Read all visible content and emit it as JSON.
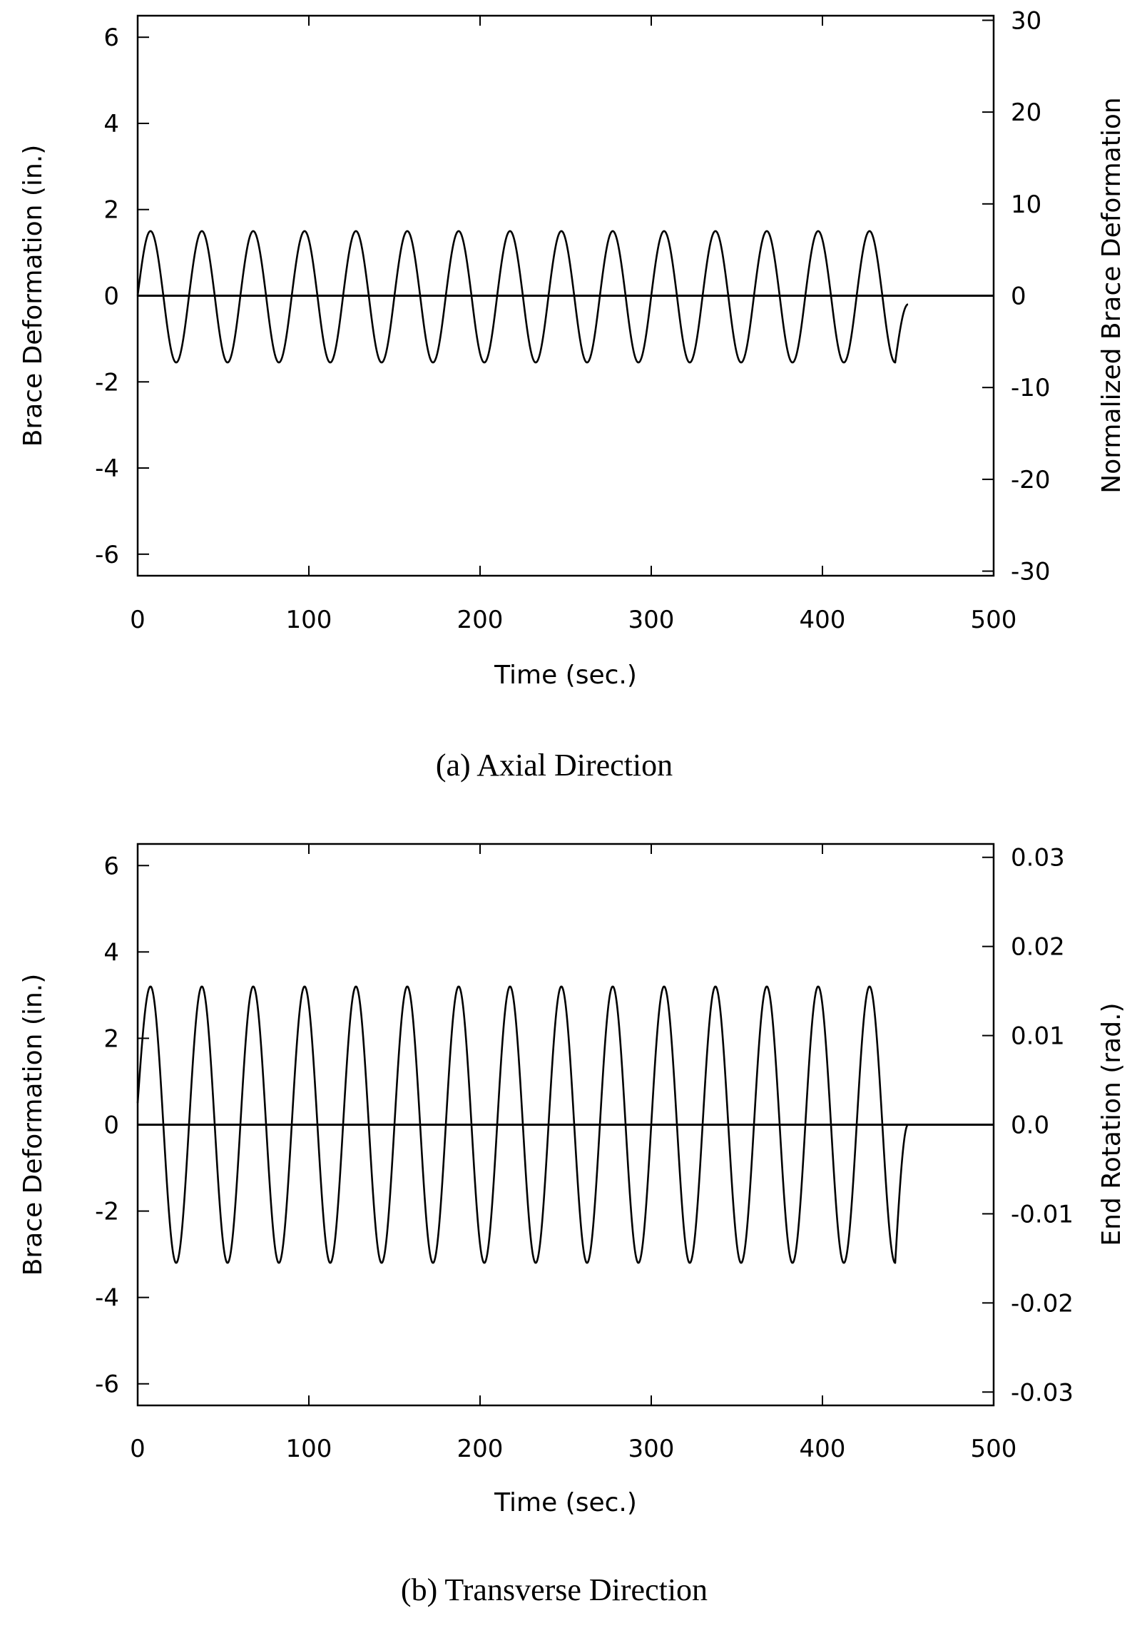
{
  "chart_data": [
    {
      "type": "line",
      "caption": "(a) Axial Direction",
      "xlabel": "Time (sec.)",
      "ylabel": "Brace Deformation (in.)",
      "y2label": "Normalized Brace Deformation",
      "xlim": [
        0,
        500
      ],
      "ylim": [
        -6.5,
        6.5
      ],
      "y2lim": [
        -30.5,
        30.5
      ],
      "xticks": [
        0,
        100,
        200,
        300,
        400,
        500
      ],
      "yticks": [
        -6,
        -4,
        -2,
        0,
        2,
        4,
        6
      ],
      "y2ticks": [
        -30,
        -20,
        -10,
        0,
        10,
        20,
        30
      ],
      "xtick_labels": [
        "0",
        "100",
        "200",
        "300",
        "400",
        "500"
      ],
      "ytick_labels": [
        "-6",
        "-4",
        "-2",
        "0",
        "2",
        "4",
        "6"
      ],
      "y2tick_labels": [
        "-30",
        "-20",
        "-10",
        "0",
        "10",
        "20",
        "30"
      ],
      "grid": false,
      "series": [
        {
          "x": [
            0,
            7.5,
            22.5,
            37.5,
            52.5,
            67.5,
            82.5,
            97.5,
            112.5,
            127.5,
            142.5,
            157.5,
            172.5,
            187.5,
            202.5,
            217.5,
            232.5,
            247.5,
            262.5,
            277.5,
            292.5,
            307.5,
            322.5,
            337.5,
            352.5,
            367.5,
            382.5,
            397.5,
            412.5,
            427.5,
            442.5,
            450
          ],
          "y": [
            0,
            1.5,
            -1.55,
            1.5,
            -1.55,
            1.5,
            -1.55,
            1.5,
            -1.55,
            1.5,
            -1.55,
            1.5,
            -1.55,
            1.5,
            -1.55,
            1.5,
            -1.55,
            1.5,
            -1.55,
            1.5,
            -1.55,
            1.5,
            -1.55,
            1.5,
            -1.55,
            1.5,
            -1.55,
            1.5,
            -1.55,
            1.5,
            -1.55,
            -0.2
          ],
          "period": 30,
          "amplitude": 1.5
        }
      ],
      "zero_line": true
    },
    {
      "type": "line",
      "caption": "(b) Transverse Direction",
      "xlabel": "Time (sec.)",
      "ylabel": "Brace Deformation (in.)",
      "y2label": "End Rotation (rad.)",
      "xlim": [
        0,
        500
      ],
      "ylim": [
        -6.5,
        6.5
      ],
      "y2lim": [
        -0.0315,
        0.0315
      ],
      "xticks": [
        0,
        100,
        200,
        300,
        400,
        500
      ],
      "yticks": [
        -6,
        -4,
        -2,
        0,
        2,
        4,
        6
      ],
      "y2ticks": [
        -0.03,
        -0.02,
        -0.01,
        0,
        0.01,
        0.02,
        0.03
      ],
      "xtick_labels": [
        "0",
        "100",
        "200",
        "300",
        "400",
        "500"
      ],
      "ytick_labels": [
        "-6",
        "-4",
        "-2",
        "0",
        "2",
        "4",
        "6"
      ],
      "y2tick_labels": [
        "-0.03",
        "-0.02",
        "-0.01",
        "0.0",
        "0.01",
        "0.02",
        "0.03"
      ],
      "grid": false,
      "series": [
        {
          "x": [
            0,
            7.5,
            22.5,
            37.5,
            52.5,
            67.5,
            82.5,
            97.5,
            112.5,
            127.5,
            142.5,
            157.5,
            172.5,
            187.5,
            202.5,
            217.5,
            232.5,
            247.5,
            262.5,
            277.5,
            292.5,
            307.5,
            322.5,
            337.5,
            352.5,
            367.5,
            382.5,
            397.5,
            412.5,
            427.5,
            442.5,
            450
          ],
          "y": [
            0.5,
            3.2,
            -3.2,
            3.2,
            -3.2,
            3.2,
            -3.2,
            3.2,
            -3.2,
            3.2,
            -3.2,
            3.2,
            -3.2,
            3.2,
            -3.2,
            3.2,
            -3.2,
            3.2,
            -3.2,
            3.2,
            -3.2,
            3.2,
            -3.2,
            3.2,
            -3.2,
            3.2,
            -3.2,
            3.2,
            -3.2,
            3.2,
            -3.2,
            0
          ],
          "period": 30,
          "amplitude": 3.2
        }
      ],
      "zero_line": true
    }
  ]
}
